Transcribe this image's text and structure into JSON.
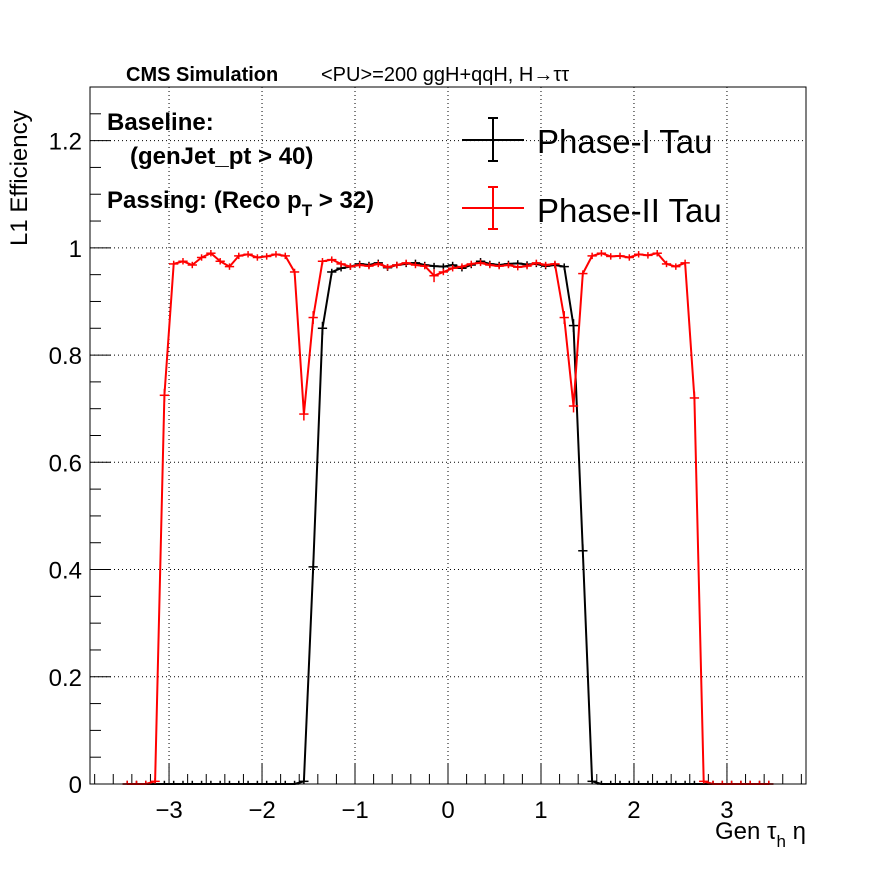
{
  "header": {
    "cms": "CMS Simulation",
    "conditions": "<PU>=200  ggH+qqH, H→ττ"
  },
  "annotations": {
    "baseline_label": "Baseline:",
    "baseline_cut": "(genJet_pt > 40)",
    "passing_prefix": "Passing: (Reco p",
    "passing_sub": "T",
    "passing_suffix": " > 32)"
  },
  "chart_data": {
    "type": "line",
    "title": "",
    "xlabel": "Gen τ",
    "xlabel_sub": "h",
    "xlabel_suffix": " η",
    "ylabel": "L1 Efficiency",
    "xlim": [
      -3.85,
      3.85
    ],
    "ylim": [
      0,
      1.3
    ],
    "x_ticks": [
      -3,
      -2,
      -1,
      0,
      1,
      2,
      3
    ],
    "x_tick_labels": [
      "−3",
      "−2",
      "−1",
      "0",
      "1",
      "2",
      "3"
    ],
    "y_ticks": [
      0,
      0.2,
      0.4,
      0.6,
      0.8,
      1,
      1.2
    ],
    "y_tick_labels": [
      "0",
      "0.2",
      "0.4",
      "0.6",
      "0.8",
      "1",
      "1.2"
    ],
    "grid": true,
    "legend_position": "top-right",
    "series": [
      {
        "name": "Phase-I Tau",
        "color": "#000000",
        "x": [
          -3.45,
          -3.35,
          -3.25,
          -3.15,
          -3.05,
          -2.95,
          -2.85,
          -2.75,
          -2.65,
          -2.55,
          -2.45,
          -2.35,
          -2.25,
          -2.15,
          -2.05,
          -1.95,
          -1.85,
          -1.75,
          -1.65,
          -1.55,
          -1.45,
          -1.35,
          -1.25,
          -1.15,
          -1.05,
          -0.95,
          -0.85,
          -0.75,
          -0.65,
          -0.55,
          -0.45,
          -0.35,
          -0.25,
          -0.15,
          -0.05,
          0.05,
          0.15,
          0.25,
          0.35,
          0.45,
          0.55,
          0.65,
          0.75,
          0.85,
          0.95,
          1.05,
          1.15,
          1.25,
          1.35,
          1.45,
          1.55,
          1.65,
          1.75,
          1.85,
          1.95,
          2.05,
          2.15,
          2.25,
          2.35,
          2.45,
          2.55,
          2.65,
          2.75,
          2.85,
          2.95,
          3.05,
          3.15,
          3.25,
          3.35,
          3.45
        ],
        "y": [
          0,
          0,
          0,
          0,
          0,
          0,
          0,
          0,
          0,
          0,
          0,
          0,
          0,
          0,
          0,
          0,
          0,
          0,
          0,
          0.005,
          0.405,
          0.85,
          0.955,
          0.962,
          0.965,
          0.97,
          0.968,
          0.972,
          0.963,
          0.968,
          0.97,
          0.972,
          0.968,
          0.966,
          0.965,
          0.968,
          0.962,
          0.968,
          0.975,
          0.97,
          0.968,
          0.97,
          0.971,
          0.969,
          0.97,
          0.966,
          0.968,
          0.965,
          0.855,
          0.435,
          0.005,
          0,
          0,
          0,
          0,
          0,
          0,
          0,
          0,
          0,
          0,
          0,
          0,
          0,
          0,
          0,
          0,
          0,
          0,
          0
        ]
      },
      {
        "name": "Phase-II Tau",
        "color": "#ff0000",
        "x": [
          -3.45,
          -3.35,
          -3.25,
          -3.15,
          -3.05,
          -2.95,
          -2.85,
          -2.75,
          -2.65,
          -2.55,
          -2.45,
          -2.35,
          -2.25,
          -2.15,
          -2.05,
          -1.95,
          -1.85,
          -1.75,
          -1.65,
          -1.55,
          -1.45,
          -1.35,
          -1.25,
          -1.15,
          -1.05,
          -0.95,
          -0.85,
          -0.75,
          -0.65,
          -0.55,
          -0.45,
          -0.35,
          -0.25,
          -0.15,
          -0.05,
          0.05,
          0.15,
          0.25,
          0.35,
          0.45,
          0.55,
          0.65,
          0.75,
          0.85,
          0.95,
          1.05,
          1.15,
          1.25,
          1.35,
          1.45,
          1.55,
          1.65,
          1.75,
          1.85,
          1.95,
          2.05,
          2.15,
          2.25,
          2.35,
          2.45,
          2.55,
          2.65,
          2.75,
          2.85,
          2.95,
          3.05,
          3.15,
          3.25,
          3.35,
          3.45
        ],
        "y": [
          0,
          0,
          0,
          0.005,
          0.725,
          0.97,
          0.975,
          0.968,
          0.982,
          0.99,
          0.975,
          0.965,
          0.985,
          0.988,
          0.982,
          0.984,
          0.988,
          0.985,
          0.955,
          0.69,
          0.87,
          0.975,
          0.978,
          0.97,
          0.965,
          0.968,
          0.966,
          0.97,
          0.964,
          0.968,
          0.972,
          0.968,
          0.966,
          0.948,
          0.955,
          0.962,
          0.965,
          0.97,
          0.972,
          0.968,
          0.966,
          0.968,
          0.964,
          0.966,
          0.972,
          0.968,
          0.97,
          0.87,
          0.705,
          0.952,
          0.985,
          0.99,
          0.984,
          0.985,
          0.982,
          0.988,
          0.986,
          0.99,
          0.97,
          0.965,
          0.972,
          0.72,
          0.005,
          0,
          0,
          0,
          0,
          0,
          0,
          0
        ]
      }
    ]
  }
}
